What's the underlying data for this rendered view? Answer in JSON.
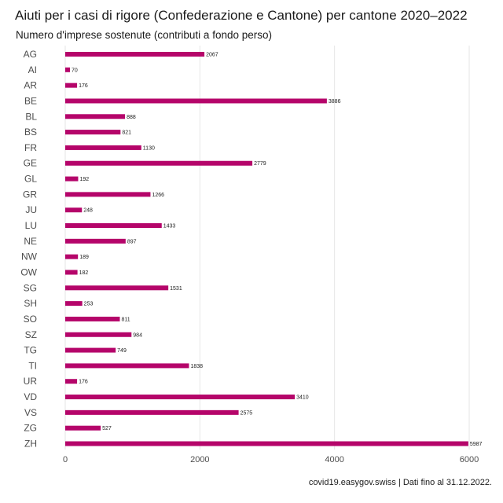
{
  "title": "Aiuti per i casi di rigore (Confederazione e Cantone) per cantone 2020–2022",
  "subtitle": "Numero d'imprese sostenute (contributi a fondo perso)",
  "caption": "covid19.easygov.swiss | Dati fino al 31.12.2022.",
  "colors": {
    "bar": "#b5056a",
    "grid": "#e6e6e6"
  },
  "chart_data": {
    "type": "bar",
    "orientation": "horizontal",
    "title": "Aiuti per i casi di rigore (Confederazione e Cantone) per cantone 2020–2022",
    "subtitle": "Numero d'imprese sostenute (contributi a fondo perso)",
    "xlabel": "",
    "ylabel": "",
    "xlim": [
      0,
      6200
    ],
    "xticks": [
      0,
      2000,
      4000,
      6000
    ],
    "grid": true,
    "categories": [
      "AG",
      "AI",
      "AR",
      "BE",
      "BL",
      "BS",
      "FR",
      "GE",
      "GL",
      "GR",
      "JU",
      "LU",
      "NE",
      "NW",
      "OW",
      "SG",
      "SH",
      "SO",
      "SZ",
      "TG",
      "TI",
      "UR",
      "VD",
      "VS",
      "ZG",
      "ZH"
    ],
    "values": [
      2067,
      70,
      176,
      3886,
      888,
      821,
      1130,
      2779,
      192,
      1266,
      248,
      1433,
      897,
      189,
      182,
      1531,
      253,
      811,
      984,
      749,
      1838,
      176,
      3410,
      2575,
      527,
      5987
    ]
  }
}
